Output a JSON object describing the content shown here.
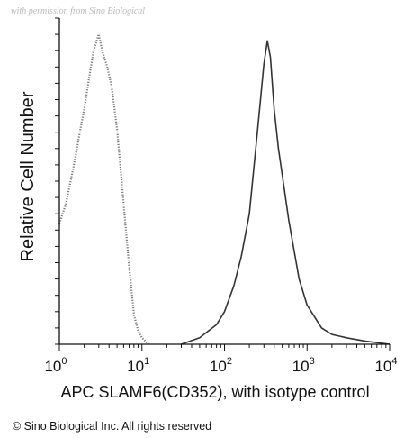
{
  "watermark": "with permission from Sino Biological",
  "copyright": "© Sino Biological Inc. All rights reserved",
  "chart_data": {
    "type": "area",
    "xlabel": "APC SLAMF6(CD352), with isotype control",
    "ylabel": "Relative Cell Number",
    "x_scale": "log",
    "xlim": [
      1,
      10000
    ],
    "ylim": [
      0,
      1.0
    ],
    "ytick_labels": [],
    "xtick_labels": [
      {
        "base": "10",
        "exp": "0",
        "value": 1
      },
      {
        "base": "10",
        "exp": "1",
        "value": 10
      },
      {
        "base": "10",
        "exp": "2",
        "value": 100
      },
      {
        "base": "10",
        "exp": "3",
        "value": 1000
      },
      {
        "base": "10",
        "exp": "4",
        "value": 10000
      }
    ],
    "series": [
      {
        "style": "dotted",
        "color": "#777777",
        "x": [
          1.0,
          1.2,
          1.5,
          1.8,
          2.0,
          2.3,
          2.6,
          3.0,
          3.3,
          3.8,
          4.3,
          5.0,
          5.6,
          6.3,
          7.0,
          8.0,
          9.0,
          10.0,
          11.0,
          12.0
        ],
        "y": [
          0.37,
          0.43,
          0.55,
          0.66,
          0.72,
          0.82,
          0.9,
          0.95,
          0.9,
          0.85,
          0.79,
          0.66,
          0.52,
          0.37,
          0.24,
          0.09,
          0.04,
          0.02,
          0.01,
          0.0
        ]
      },
      {
        "style": "solid",
        "color": "#333333",
        "x": [
          30,
          50,
          80,
          100,
          130,
          160,
          200,
          250,
          300,
          330,
          360,
          400,
          450,
          500,
          600,
          800,
          1000,
          1500,
          2000,
          3000,
          5000,
          10000
        ],
        "y": [
          0.0,
          0.02,
          0.06,
          0.1,
          0.18,
          0.27,
          0.4,
          0.65,
          0.86,
          0.93,
          0.88,
          0.72,
          0.6,
          0.52,
          0.38,
          0.2,
          0.12,
          0.05,
          0.03,
          0.02,
          0.01,
          0.0
        ]
      }
    ]
  }
}
